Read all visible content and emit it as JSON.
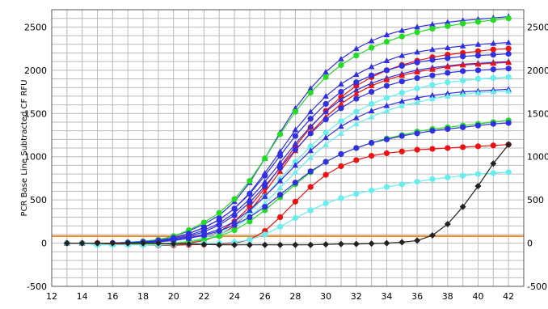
{
  "chart_data": {
    "type": "line",
    "title": "",
    "xlabel": "",
    "ylabel": "PCR Base Line Subtracted CF RFU",
    "xlim": [
      12,
      43
    ],
    "ylim": [
      -500,
      2700
    ],
    "x_ticks": [
      12,
      14,
      16,
      18,
      20,
      22,
      24,
      26,
      28,
      30,
      32,
      34,
      36,
      38,
      40,
      42
    ],
    "y_ticks": [
      -500,
      0,
      500,
      1000,
      1500,
      2000,
      2500
    ],
    "right_y_ticks": [
      -500,
      0,
      500,
      1000,
      1500,
      2000,
      2500
    ],
    "right_y_tick_labels": [
      "-500",
      "0",
      "500",
      "1000",
      "1500",
      "2000",
      "2500"
    ],
    "grid": true,
    "threshold": {
      "value": 80,
      "color": "#f28c28"
    },
    "x": [
      13,
      14,
      15,
      16,
      17,
      18,
      19,
      20,
      21,
      22,
      23,
      24,
      25,
      26,
      27,
      28,
      29,
      30,
      31,
      32,
      33,
      34,
      35,
      36,
      37,
      38,
      39,
      40,
      41,
      42
    ],
    "series": [
      {
        "color": "#3030e0",
        "marker": "triangle",
        "values": [
          0,
          0,
          0,
          0,
          10,
          20,
          40,
          80,
          140,
          220,
          320,
          480,
          700,
          980,
          1280,
          1560,
          1790,
          1980,
          2130,
          2250,
          2340,
          2410,
          2460,
          2500,
          2530,
          2555,
          2575,
          2590,
          2605,
          2620
        ]
      },
      {
        "color": "#22dd22",
        "marker": "circle",
        "values": [
          0,
          0,
          0,
          0,
          10,
          20,
          40,
          80,
          150,
          240,
          350,
          510,
          720,
          980,
          1260,
          1520,
          1740,
          1920,
          2060,
          2170,
          2260,
          2330,
          2390,
          2440,
          2480,
          2510,
          2540,
          2560,
          2580,
          2600
        ]
      },
      {
        "color": "#3030e0",
        "marker": "triangle",
        "values": [
          0,
          0,
          0,
          0,
          5,
          15,
          30,
          60,
          110,
          180,
          270,
          400,
          580,
          810,
          1060,
          1310,
          1520,
          1700,
          1840,
          1950,
          2040,
          2110,
          2170,
          2210,
          2240,
          2260,
          2280,
          2300,
          2310,
          2320
        ]
      },
      {
        "color": "#ee1111",
        "marker": "circle",
        "values": [
          0,
          0,
          0,
          -10,
          -10,
          -10,
          -10,
          0,
          20,
          60,
          130,
          250,
          420,
          640,
          880,
          1120,
          1340,
          1530,
          1690,
          1820,
          1920,
          2000,
          2060,
          2110,
          2150,
          2180,
          2200,
          2220,
          2240,
          2250
        ]
      },
      {
        "color": "#3030e0",
        "marker": "circle",
        "values": [
          0,
          0,
          0,
          0,
          5,
          15,
          30,
          60,
          110,
          180,
          270,
          400,
          570,
          780,
          1010,
          1240,
          1440,
          1610,
          1750,
          1860,
          1940,
          2000,
          2050,
          2090,
          2120,
          2140,
          2160,
          2170,
          2180,
          2190
        ]
      },
      {
        "color": "#3030e0",
        "marker": "triangle",
        "values": [
          0,
          0,
          0,
          0,
          5,
          10,
          25,
          50,
          90,
          150,
          230,
          350,
          510,
          710,
          930,
          1150,
          1350,
          1520,
          1660,
          1770,
          1850,
          1910,
          1960,
          2000,
          2030,
          2050,
          2070,
          2080,
          2090,
          2100
        ]
      },
      {
        "color": "#ee1111",
        "marker": "triangle",
        "values": [
          0,
          0,
          0,
          -10,
          -10,
          -10,
          -15,
          -10,
          0,
          30,
          90,
          200,
          370,
          590,
          830,
          1070,
          1280,
          1460,
          1610,
          1730,
          1820,
          1890,
          1940,
          1980,
          2010,
          2040,
          2060,
          2070,
          2080,
          2090
        ]
      },
      {
        "color": "#3030e0",
        "marker": "circle",
        "values": [
          0,
          0,
          0,
          0,
          5,
          10,
          20,
          40,
          75,
          130,
          210,
          320,
          470,
          660,
          870,
          1080,
          1270,
          1430,
          1560,
          1670,
          1750,
          1820,
          1870,
          1910,
          1940,
          1970,
          1990,
          2000,
          2010,
          2020
        ]
      },
      {
        "color": "#66eeee",
        "marker": "circle",
        "values": [
          0,
          0,
          -10,
          -10,
          -10,
          -10,
          -10,
          0,
          20,
          60,
          120,
          220,
          360,
          540,
          740,
          940,
          1120,
          1280,
          1410,
          1520,
          1610,
          1680,
          1740,
          1790,
          1830,
          1860,
          1880,
          1900,
          1910,
          1920
        ]
      },
      {
        "color": "#3030e0",
        "marker": "triangle",
        "values": [
          0,
          0,
          0,
          0,
          5,
          10,
          20,
          35,
          60,
          100,
          160,
          250,
          380,
          540,
          720,
          900,
          1070,
          1220,
          1350,
          1450,
          1530,
          1590,
          1640,
          1680,
          1710,
          1730,
          1750,
          1760,
          1770,
          1780
        ]
      },
      {
        "color": "#66eeee",
        "marker": "triangle",
        "values": [
          0,
          0,
          -10,
          -15,
          -15,
          -15,
          -10,
          0,
          15,
          45,
          95,
          180,
          300,
          460,
          640,
          820,
          990,
          1140,
          1270,
          1380,
          1460,
          1530,
          1590,
          1630,
          1670,
          1700,
          1720,
          1740,
          1750,
          1760
        ]
      },
      {
        "color": "#22dd22",
        "marker": "circle",
        "values": [
          0,
          0,
          0,
          -10,
          -10,
          -10,
          -10,
          0,
          15,
          40,
          80,
          150,
          250,
          380,
          530,
          680,
          820,
          940,
          1030,
          1100,
          1160,
          1210,
          1250,
          1290,
          1320,
          1340,
          1360,
          1380,
          1400,
          1420
        ]
      },
      {
        "color": "#3030e0",
        "marker": "circle",
        "values": [
          0,
          0,
          0,
          0,
          0,
          5,
          15,
          30,
          55,
          90,
          140,
          210,
          300,
          420,
          560,
          700,
          830,
          940,
          1030,
          1100,
          1160,
          1200,
          1240,
          1270,
          1300,
          1320,
          1340,
          1360,
          1380,
          1390
        ]
      },
      {
        "color": "#ee1111",
        "marker": "circle",
        "values": [
          0,
          0,
          0,
          -10,
          -15,
          -20,
          -25,
          -25,
          -20,
          -15,
          -10,
          0,
          40,
          140,
          300,
          480,
          650,
          790,
          890,
          960,
          1010,
          1040,
          1060,
          1080,
          1090,
          1100,
          1110,
          1120,
          1130,
          1140
        ]
      },
      {
        "color": "#66eeee",
        "marker": "circle",
        "values": [
          0,
          0,
          -20,
          -20,
          -20,
          -20,
          -20,
          -15,
          -10,
          -5,
          0,
          10,
          40,
          100,
          190,
          290,
          380,
          460,
          520,
          570,
          610,
          650,
          680,
          710,
          740,
          760,
          780,
          800,
          810,
          820
        ]
      },
      {
        "color": "#222222",
        "marker": "diamond",
        "values": [
          0,
          0,
          0,
          0,
          0,
          0,
          0,
          -10,
          -10,
          -15,
          -20,
          -20,
          -20,
          -20,
          -20,
          -20,
          -20,
          -15,
          -10,
          -10,
          -5,
          0,
          10,
          30,
          90,
          220,
          420,
          660,
          920,
          1140
        ]
      }
    ]
  }
}
